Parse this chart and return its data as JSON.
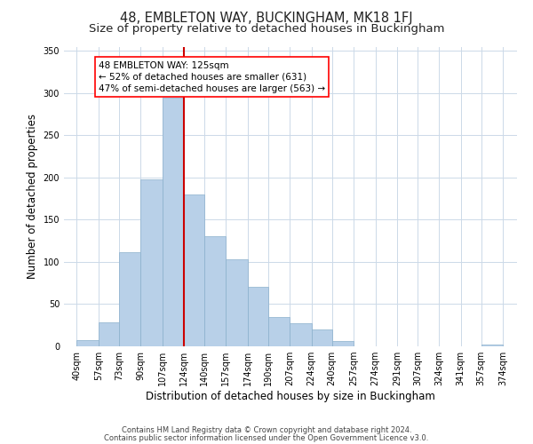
{
  "title": "48, EMBLETON WAY, BUCKINGHAM, MK18 1FJ",
  "subtitle": "Size of property relative to detached houses in Buckingham",
  "xlabel": "Distribution of detached houses by size in Buckingham",
  "ylabel": "Number of detached properties",
  "bar_left_edges": [
    40,
    57,
    73,
    90,
    107,
    124,
    140,
    157,
    174,
    190,
    207,
    224,
    240,
    257,
    274,
    291,
    307,
    324,
    341,
    357
  ],
  "bar_heights": [
    7,
    28,
    111,
    198,
    295,
    180,
    130,
    103,
    70,
    35,
    27,
    20,
    6,
    0,
    0,
    0,
    0,
    0,
    0,
    2
  ],
  "bar_widths": [
    17,
    16,
    17,
    17,
    17,
    16,
    17,
    17,
    16,
    17,
    17,
    16,
    17,
    17,
    17,
    16,
    17,
    17,
    16,
    17
  ],
  "tick_labels": [
    "40sqm",
    "57sqm",
    "73sqm",
    "90sqm",
    "107sqm",
    "124sqm",
    "140sqm",
    "157sqm",
    "174sqm",
    "190sqm",
    "207sqm",
    "224sqm",
    "240sqm",
    "257sqm",
    "274sqm",
    "291sqm",
    "307sqm",
    "324sqm",
    "341sqm",
    "357sqm",
    "374sqm"
  ],
  "tick_positions": [
    40,
    57,
    73,
    90,
    107,
    124,
    140,
    157,
    174,
    190,
    207,
    224,
    240,
    257,
    274,
    291,
    307,
    324,
    341,
    357,
    374
  ],
  "bar_color": "#b8d0e8",
  "bar_edge_color": "#8ab0cc",
  "vline_x": 124,
  "vline_color": "#cc0000",
  "annotation_line1": "48 EMBLETON WAY: 125sqm",
  "annotation_line2": "← 52% of detached houses are smaller (631)",
  "annotation_line3": "47% of semi-detached houses are larger (563) →",
  "ylim": [
    0,
    355
  ],
  "xlim": [
    30,
    385
  ],
  "yticks": [
    0,
    50,
    100,
    150,
    200,
    250,
    300,
    350
  ],
  "footer_line1": "Contains HM Land Registry data © Crown copyright and database right 2024.",
  "footer_line2": "Contains public sector information licensed under the Open Government Licence v3.0.",
  "bg_color": "#ffffff",
  "grid_color": "#ccd9e8",
  "title_fontsize": 10.5,
  "subtitle_fontsize": 9.5,
  "axis_label_fontsize": 8.5,
  "tick_fontsize": 7,
  "ann_fontsize": 7.5,
  "footer_fontsize": 6
}
